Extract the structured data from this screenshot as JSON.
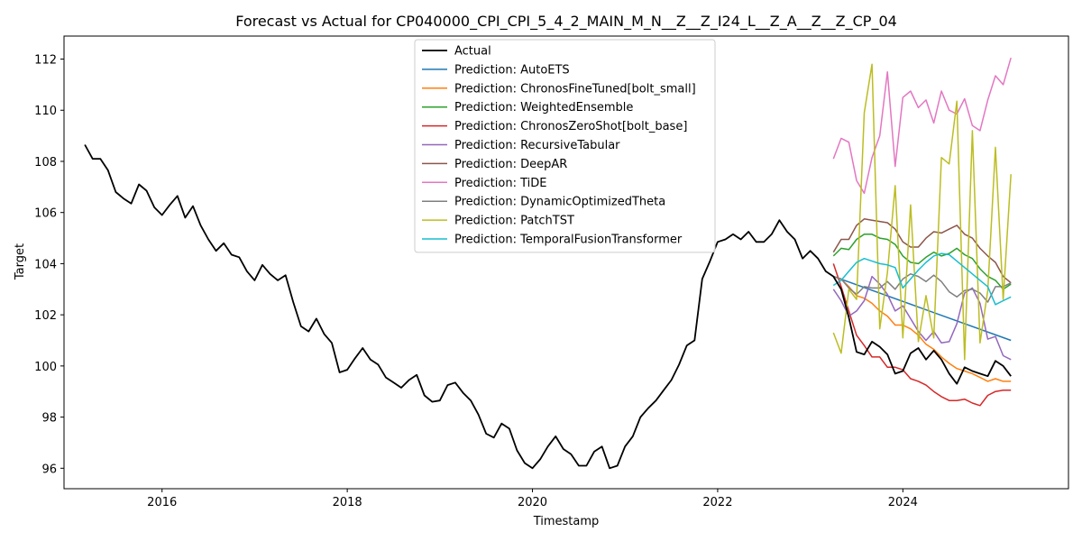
{
  "chart_data": {
    "type": "line",
    "title": "Forecast vs Actual for CP040000_CPI_CPI_5_4_2_MAIN_M_N__Z__Z_I24_L__Z_A__Z__Z_CP_04",
    "xlabel": "Timestamp",
    "ylabel": "Target",
    "xlim": [
      "2014-12-10",
      "2025-10-15"
    ],
    "ylim": [
      95.2,
      112.9
    ],
    "x_ticks": [
      "2016",
      "2018",
      "2020",
      "2022",
      "2024"
    ],
    "y_ticks": [
      96,
      98,
      100,
      102,
      104,
      106,
      108,
      110,
      112
    ],
    "grid": false,
    "legend_position": "top-center",
    "series": [
      {
        "name": "Actual",
        "color": "#000000",
        "x": [
          "2015-03",
          "2015-04",
          "2015-05",
          "2015-06",
          "2015-07",
          "2015-08",
          "2015-09",
          "2015-10",
          "2015-11",
          "2015-12",
          "2016-01",
          "2016-02",
          "2016-03",
          "2016-04",
          "2016-05",
          "2016-06",
          "2016-07",
          "2016-08",
          "2016-09",
          "2016-10",
          "2016-11",
          "2016-12",
          "2017-01",
          "2017-02",
          "2017-03",
          "2017-04",
          "2017-05",
          "2017-06",
          "2017-07",
          "2017-08",
          "2017-09",
          "2017-10",
          "2017-11",
          "2017-12",
          "2018-01",
          "2018-02",
          "2018-03",
          "2018-04",
          "2018-05",
          "2018-06",
          "2018-07",
          "2018-08",
          "2018-09",
          "2018-10",
          "2018-11",
          "2018-12",
          "2019-01",
          "2019-02",
          "2019-03",
          "2019-04",
          "2019-05",
          "2019-06",
          "2019-07",
          "2019-08",
          "2019-09",
          "2019-10",
          "2019-11",
          "2019-12",
          "2020-01",
          "2020-02",
          "2020-03",
          "2020-04",
          "2020-05",
          "2020-06",
          "2020-07",
          "2020-08",
          "2020-09",
          "2020-10",
          "2020-11",
          "2020-12",
          "2021-01",
          "2021-02",
          "2021-03",
          "2021-04",
          "2021-05",
          "2021-06",
          "2021-07",
          "2021-08",
          "2021-09",
          "2021-10",
          "2021-11",
          "2021-12",
          "2022-01",
          "2022-02",
          "2022-03",
          "2022-04",
          "2022-05",
          "2022-06",
          "2022-07",
          "2022-08",
          "2022-09",
          "2022-10",
          "2022-11",
          "2022-12",
          "2023-01",
          "2023-02",
          "2023-03",
          "2023-04",
          "2023-05",
          "2023-06",
          "2023-07",
          "2023-08",
          "2023-09",
          "2023-10",
          "2023-11",
          "2023-12",
          "2024-01",
          "2024-02",
          "2024-03",
          "2024-04",
          "2024-05",
          "2024-06",
          "2024-07",
          "2024-08",
          "2024-09",
          "2024-10",
          "2024-11",
          "2024-12",
          "2025-01",
          "2025-02",
          "2025-03"
        ],
        "y": [
          108.65,
          108.1,
          108.1,
          107.65,
          106.8,
          106.55,
          106.35,
          107.1,
          106.85,
          106.2,
          105.9,
          106.3,
          106.65,
          105.8,
          106.25,
          105.5,
          104.95,
          104.5,
          104.8,
          104.35,
          104.25,
          103.7,
          103.35,
          103.95,
          103.6,
          103.35,
          103.55,
          102.5,
          101.55,
          101.35,
          101.85,
          101.25,
          100.9,
          99.75,
          99.85,
          100.3,
          100.7,
          100.25,
          100.05,
          99.55,
          99.35,
          99.15,
          99.45,
          99.65,
          98.85,
          98.6,
          98.65,
          99.25,
          99.35,
          98.95,
          98.65,
          98.1,
          97.35,
          97.2,
          97.75,
          97.55,
          96.7,
          96.2,
          96.0,
          96.35,
          96.85,
          97.25,
          96.75,
          96.55,
          96.1,
          96.1,
          96.65,
          96.85,
          96.0,
          96.1,
          96.85,
          97.25,
          98.0,
          98.35,
          98.65,
          99.05,
          99.45,
          100.05,
          100.8,
          101.0,
          103.4,
          104.1,
          104.85,
          104.95,
          105.15,
          104.95,
          105.25,
          104.85,
          104.85,
          105.15,
          105.7,
          105.25,
          104.95,
          104.2,
          104.5,
          104.2,
          103.7,
          103.5,
          103.0,
          101.9,
          100.55,
          100.45,
          100.95,
          100.75,
          100.45,
          99.7,
          99.8,
          100.5,
          100.7,
          100.25,
          100.6,
          100.25,
          99.7,
          99.3,
          99.95,
          99.8,
          99.7,
          99.6,
          100.2,
          100.0,
          99.6
        ]
      },
      {
        "name": "Prediction: AutoETS",
        "color": "#1f77b4",
        "x": [
          "2023-04",
          "2025-03"
        ],
        "y": [
          103.5,
          101.0
        ]
      },
      {
        "name": "Prediction: ChronosFineTuned[bolt_small]",
        "color": "#ff7f0e",
        "x": [
          "2023-04",
          "2023-05",
          "2023-06",
          "2023-07",
          "2023-08",
          "2023-09",
          "2023-10",
          "2023-11",
          "2023-12",
          "2024-01",
          "2024-02",
          "2024-03",
          "2024-04",
          "2024-05",
          "2024-06",
          "2024-07",
          "2024-08",
          "2024-09",
          "2024-10",
          "2024-11",
          "2024-12",
          "2025-01",
          "2025-02",
          "2025-03"
        ],
        "y": [
          103.5,
          103.4,
          103.1,
          102.75,
          102.65,
          102.45,
          102.15,
          101.95,
          101.6,
          101.6,
          101.45,
          101.2,
          100.85,
          100.65,
          100.35,
          100.1,
          99.9,
          99.8,
          99.7,
          99.55,
          99.4,
          99.5,
          99.4,
          99.4
        ]
      },
      {
        "name": "Prediction: WeightedEnsemble",
        "color": "#2ca02c",
        "x": [
          "2023-04",
          "2023-05",
          "2023-06",
          "2023-07",
          "2023-08",
          "2023-09",
          "2023-10",
          "2023-11",
          "2023-12",
          "2024-01",
          "2024-02",
          "2024-03",
          "2024-04",
          "2024-05",
          "2024-06",
          "2024-07",
          "2024-08",
          "2024-09",
          "2024-10",
          "2024-11",
          "2024-12",
          "2025-01",
          "2025-02",
          "2025-03"
        ],
        "y": [
          104.3,
          104.6,
          104.55,
          104.95,
          105.15,
          105.15,
          105.0,
          104.95,
          104.75,
          104.3,
          104.05,
          104.0,
          104.25,
          104.45,
          104.3,
          104.4,
          104.6,
          104.35,
          104.2,
          103.8,
          103.5,
          103.35,
          103.0,
          103.2
        ]
      },
      {
        "name": "Prediction: ChronosZeroShot[bolt_base]",
        "color": "#d62728",
        "x": [
          "2023-04",
          "2023-05",
          "2023-06",
          "2023-07",
          "2023-08",
          "2023-09",
          "2023-10",
          "2023-11",
          "2023-12",
          "2024-01",
          "2024-02",
          "2024-03",
          "2024-04",
          "2024-05",
          "2024-06",
          "2024-07",
          "2024-08",
          "2024-09",
          "2024-10",
          "2024-11",
          "2024-12",
          "2025-01",
          "2025-02",
          "2025-03"
        ],
        "y": [
          104.0,
          103.1,
          102.15,
          101.2,
          100.8,
          100.35,
          100.35,
          99.95,
          99.95,
          99.85,
          99.5,
          99.4,
          99.25,
          99.0,
          98.8,
          98.65,
          98.65,
          98.7,
          98.55,
          98.45,
          98.85,
          99.0,
          99.05,
          99.05
        ]
      },
      {
        "name": "Prediction: RecursiveTabular",
        "color": "#9467bd",
        "x": [
          "2023-04",
          "2023-05",
          "2023-06",
          "2023-07",
          "2023-08",
          "2023-09",
          "2023-10",
          "2023-11",
          "2023-12",
          "2024-01",
          "2024-02",
          "2024-03",
          "2024-04",
          "2024-05",
          "2024-06",
          "2024-07",
          "2024-08",
          "2024-09",
          "2024-10",
          "2024-11",
          "2024-12",
          "2025-01",
          "2025-02",
          "2025-03"
        ],
        "y": [
          103.0,
          102.55,
          101.95,
          102.15,
          102.55,
          103.5,
          103.2,
          102.8,
          102.15,
          102.35,
          101.85,
          101.35,
          101.0,
          101.35,
          100.9,
          100.95,
          101.65,
          102.85,
          103.05,
          102.45,
          101.05,
          101.15,
          100.4,
          100.25
        ]
      },
      {
        "name": "Prediction: DeepAR",
        "color": "#8c564b",
        "x": [
          "2023-04",
          "2023-05",
          "2023-06",
          "2023-07",
          "2023-08",
          "2023-09",
          "2023-10",
          "2023-11",
          "2023-12",
          "2024-01",
          "2024-02",
          "2024-03",
          "2024-04",
          "2024-05",
          "2024-06",
          "2024-07",
          "2024-08",
          "2024-09",
          "2024-10",
          "2024-11",
          "2024-12",
          "2025-01",
          "2025-02",
          "2025-03"
        ],
        "y": [
          104.45,
          104.95,
          104.95,
          105.5,
          105.75,
          105.7,
          105.65,
          105.6,
          105.35,
          104.85,
          104.65,
          104.65,
          105.0,
          105.25,
          105.2,
          105.35,
          105.5,
          105.15,
          105.0,
          104.6,
          104.3,
          104.05,
          103.5,
          103.25
        ]
      },
      {
        "name": "Prediction: TiDE",
        "color": "#e377c2",
        "x": [
          "2023-04",
          "2023-05",
          "2023-06",
          "2023-07",
          "2023-08",
          "2023-09",
          "2023-10",
          "2023-11",
          "2023-12",
          "2024-01",
          "2024-02",
          "2024-03",
          "2024-04",
          "2024-05",
          "2024-06",
          "2024-07",
          "2024-08",
          "2024-09",
          "2024-10",
          "2024-11",
          "2024-12",
          "2025-01",
          "2025-02",
          "2025-03"
        ],
        "y": [
          108.1,
          108.9,
          108.75,
          107.25,
          106.75,
          108.15,
          109.0,
          111.5,
          107.8,
          110.5,
          110.75,
          110.1,
          110.4,
          109.5,
          110.75,
          110.0,
          109.85,
          110.45,
          109.4,
          109.2,
          110.4,
          111.35,
          111.0,
          112.05
        ]
      },
      {
        "name": "Prediction: DynamicOptimizedTheta",
        "color": "#7f7f7f",
        "x": [
          "2023-04",
          "2023-05",
          "2023-06",
          "2023-07",
          "2023-08",
          "2023-09",
          "2023-10",
          "2023-11",
          "2023-12",
          "2024-01",
          "2024-02",
          "2024-03",
          "2024-04",
          "2024-05",
          "2024-06",
          "2024-07",
          "2024-08",
          "2024-09",
          "2024-10",
          "2024-11",
          "2024-12",
          "2025-01",
          "2025-02",
          "2025-03"
        ],
        "y": [
          103.5,
          103.4,
          103.05,
          102.8,
          103.1,
          103.05,
          103.05,
          103.3,
          103.0,
          103.4,
          103.6,
          103.5,
          103.3,
          103.55,
          103.3,
          102.9,
          102.7,
          102.95,
          103.0,
          102.85,
          102.5,
          103.1,
          103.1,
          103.25
        ]
      },
      {
        "name": "Prediction: PatchTST",
        "color": "#bcbd22",
        "x": [
          "2023-04",
          "2023-05",
          "2023-06",
          "2023-07",
          "2023-08",
          "2023-09",
          "2023-10",
          "2023-11",
          "2023-12",
          "2024-01",
          "2024-02",
          "2024-03",
          "2024-04",
          "2024-05",
          "2024-06",
          "2024-07",
          "2024-08",
          "2024-09",
          "2024-10",
          "2024-11",
          "2024-12",
          "2025-01",
          "2025-02",
          "2025-03"
        ],
        "y": [
          101.3,
          100.5,
          103.0,
          102.6,
          109.9,
          111.8,
          101.45,
          103.65,
          107.05,
          101.1,
          106.3,
          100.95,
          102.75,
          101.1,
          108.15,
          107.9,
          110.35,
          100.25,
          109.2,
          100.9,
          102.95,
          108.55,
          102.6,
          107.5
        ]
      },
      {
        "name": "Prediction: TemporalFusionTransformer",
        "color": "#17becf",
        "x": [
          "2023-04",
          "2023-05",
          "2023-06",
          "2023-07",
          "2023-08",
          "2023-09",
          "2023-10",
          "2023-11",
          "2023-12",
          "2024-01",
          "2024-02",
          "2024-03",
          "2024-04",
          "2024-05",
          "2024-06",
          "2024-07",
          "2024-08",
          "2024-09",
          "2024-10",
          "2024-11",
          "2024-12",
          "2025-01",
          "2025-02",
          "2025-03"
        ],
        "y": [
          103.15,
          103.35,
          103.7,
          104.05,
          104.2,
          104.1,
          104.0,
          103.95,
          103.85,
          103.05,
          103.4,
          103.75,
          104.05,
          104.3,
          104.4,
          104.35,
          104.1,
          103.85,
          103.6,
          103.35,
          103.1,
          102.4,
          102.55,
          102.7
        ]
      }
    ]
  }
}
